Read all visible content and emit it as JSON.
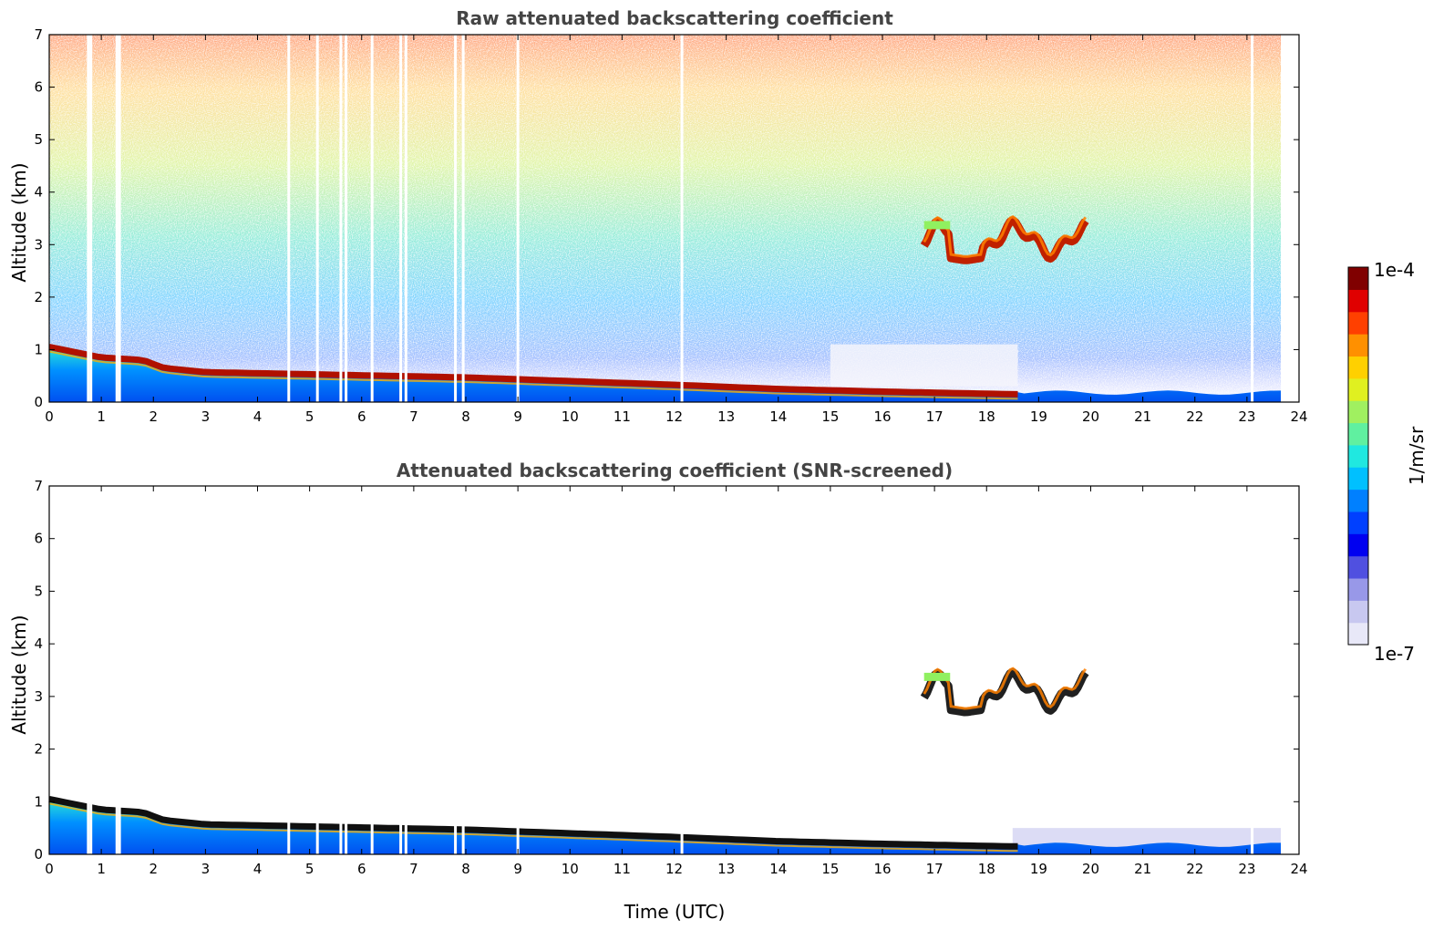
{
  "chart_data": [
    {
      "type": "heatmap",
      "title": "Raw attenuated backscattering coefficient",
      "xlabel": "",
      "ylabel": "Altitude (km)",
      "xlim": [
        0,
        24
      ],
      "ylim": [
        0,
        7
      ],
      "xticks": [
        "0",
        "1",
        "2",
        "3",
        "4",
        "5",
        "6",
        "7",
        "8",
        "9",
        "10",
        "11",
        "12",
        "13",
        "14",
        "15",
        "16",
        "17",
        "18",
        "19",
        "20",
        "21",
        "22",
        "23",
        "24"
      ],
      "yticks": [
        "0",
        "1",
        "2",
        "3",
        "4",
        "5",
        "6",
        "7"
      ],
      "data_end_time": 23.65,
      "boundary_layer_top_km": [
        {
          "t": 0.0,
          "z": 1.1
        },
        {
          "t": 0.5,
          "z": 1.0
        },
        {
          "t": 1.0,
          "z": 0.9
        },
        {
          "t": 1.8,
          "z": 0.85
        },
        {
          "t": 2.2,
          "z": 0.7
        },
        {
          "t": 3.0,
          "z": 0.62
        },
        {
          "t": 5.0,
          "z": 0.58
        },
        {
          "t": 8.0,
          "z": 0.52
        },
        {
          "t": 10.0,
          "z": 0.45
        },
        {
          "t": 12.0,
          "z": 0.38
        },
        {
          "t": 14.0,
          "z": 0.3
        },
        {
          "t": 16.0,
          "z": 0.25
        },
        {
          "t": 18.5,
          "z": 0.2
        }
      ],
      "cloud_layer_km": {
        "start": 16.8,
        "end": 19.9,
        "base": 2.6,
        "top": 3.5
      },
      "missing_data_times": [
        0.75,
        0.8,
        1.3,
        1.35,
        4.6,
        5.15,
        5.6,
        5.7,
        6.2,
        6.75,
        6.85,
        7.8,
        7.95,
        9.0,
        12.15,
        23.1
      ]
    },
    {
      "type": "heatmap",
      "title": "Attenuated backscattering coefficient (SNR-screened)",
      "xlabel": "Time (UTC)",
      "ylabel": "Altitude (km)",
      "xlim": [
        0,
        24
      ],
      "ylim": [
        0,
        7
      ],
      "xticks": [
        "0",
        "1",
        "2",
        "3",
        "4",
        "5",
        "6",
        "7",
        "8",
        "9",
        "10",
        "11",
        "12",
        "13",
        "14",
        "15",
        "16",
        "17",
        "18",
        "19",
        "20",
        "21",
        "22",
        "23",
        "24"
      ],
      "yticks": [
        "0",
        "1",
        "2",
        "3",
        "4",
        "5",
        "6",
        "7"
      ],
      "data_end_time": 23.65,
      "boundary_layer_top_km": [
        {
          "t": 0.0,
          "z": 1.1
        },
        {
          "t": 0.5,
          "z": 1.0
        },
        {
          "t": 1.0,
          "z": 0.9
        },
        {
          "t": 1.8,
          "z": 0.85
        },
        {
          "t": 2.2,
          "z": 0.7
        },
        {
          "t": 3.0,
          "z": 0.62
        },
        {
          "t": 5.0,
          "z": 0.58
        },
        {
          "t": 8.0,
          "z": 0.52
        },
        {
          "t": 10.0,
          "z": 0.45
        },
        {
          "t": 12.0,
          "z": 0.38
        },
        {
          "t": 14.0,
          "z": 0.3
        },
        {
          "t": 16.0,
          "z": 0.25
        },
        {
          "t": 18.5,
          "z": 0.2
        }
      ],
      "cloud_layer_km": {
        "start": 16.8,
        "end": 19.9,
        "base": 2.6,
        "top": 3.5
      },
      "missing_data_times": [
        0.75,
        0.8,
        1.3,
        1.35,
        4.6,
        5.15,
        5.6,
        5.7,
        6.2,
        6.75,
        6.85,
        7.8,
        7.95,
        9.0,
        12.15,
        23.1
      ]
    }
  ],
  "colorbar": {
    "label": "1/m/sr",
    "max_label": "1e-4",
    "min_label": "1e-7",
    "scale": "log",
    "colors": [
      "#e8e8f8",
      "#c8c8f0",
      "#9898e8",
      "#5050e0",
      "#0000f0",
      "#0040ff",
      "#0080ff",
      "#00c0ff",
      "#20e8e0",
      "#60f0a0",
      "#a0f060",
      "#e0f020",
      "#ffd000",
      "#ff9000",
      "#ff4000",
      "#e00000",
      "#800000"
    ]
  },
  "colors": {
    "axis": "#000000",
    "title": "#444444",
    "bl_peak": "#b01000",
    "bl_peak_screened": "#101010",
    "aerosol": "#0060ff"
  }
}
